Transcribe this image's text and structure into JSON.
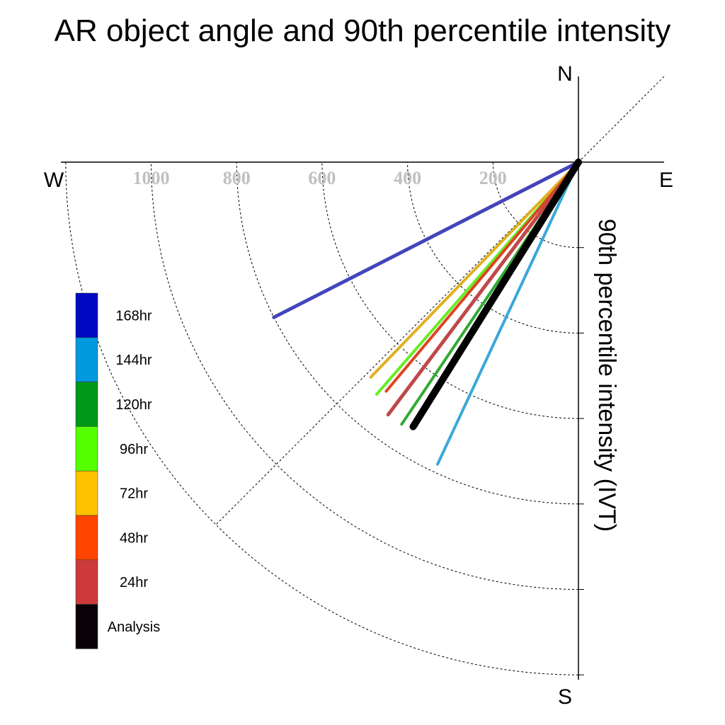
{
  "chart_data": {
    "type": "polar-vector",
    "title": "AR object angle and 90th percentile intensity",
    "compass": {
      "n": "N",
      "s": "S",
      "e": "E",
      "w": "W"
    },
    "radial_label": "90th percentile intensity (IVT)",
    "radial_ticks": [
      {
        "value": 200,
        "label": "200"
      },
      {
        "value": 400,
        "label": "400"
      },
      {
        "value": 600,
        "label": "600"
      },
      {
        "value": 800,
        "label": "800"
      },
      {
        "value": 1000,
        "label": "1000"
      },
      {
        "value": 1200,
        "label": ""
      }
    ],
    "rmax": 1200,
    "reference_angle_deg": 225,
    "series": [
      {
        "name": "168hr",
        "color": "#4444bb",
        "legend_color": "#0008c2",
        "angle_deg": 243,
        "intensity": 800,
        "width": 5
      },
      {
        "name": "144hr",
        "color": "#3aa8d8",
        "legend_color": "#0099dd",
        "angle_deg": 205,
        "intensity": 780,
        "width": 4
      },
      {
        "name": "120hr",
        "color": "#33aa33",
        "legend_color": "#009917",
        "angle_deg": 214,
        "intensity": 740,
        "width": 4
      },
      {
        "name": "96hr",
        "color": "#66ee22",
        "legend_color": "#55ff00",
        "angle_deg": 221,
        "intensity": 720,
        "width": 4
      },
      {
        "name": "72hr",
        "color": "#e0b020",
        "legend_color": "#ffc200",
        "angle_deg": 224,
        "intensity": 700,
        "width": 4
      },
      {
        "name": "48hr",
        "color": "#dd4422",
        "legend_color": "#ff4400",
        "angle_deg": 220,
        "intensity": 700,
        "width": 4
      },
      {
        "name": "24hr",
        "color": "#c04848",
        "legend_color": "#cc3a3a",
        "angle_deg": 217,
        "intensity": 740,
        "width": 5
      },
      {
        "name": "Analysis",
        "color": "#000000",
        "legend_color": "#0a0008",
        "angle_deg": 212,
        "intensity": 730,
        "width": 10
      }
    ],
    "legend_order": [
      "168hr",
      "144hr",
      "120hr",
      "96hr",
      "72hr",
      "48hr",
      "24hr",
      "Analysis"
    ],
    "legend_placement": "left"
  }
}
